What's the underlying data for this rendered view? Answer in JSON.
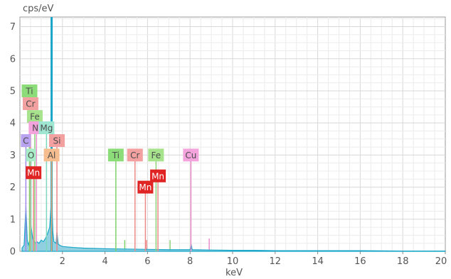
{
  "chart_data": {
    "type": "line",
    "title": "",
    "ylabel": "cps/eV",
    "xlabel": "keV",
    "xlim": [
      0,
      20
    ],
    "ylim": [
      0,
      7.3
    ],
    "x_ticks": [
      2,
      4,
      6,
      8,
      10,
      12,
      14,
      16,
      18,
      20
    ],
    "y_ticks": [
      0,
      1,
      2,
      3,
      4,
      5,
      6,
      7
    ],
    "grid": true,
    "series": [
      {
        "color": "#1aa6c9",
        "x": [
          0.1,
          0.2,
          0.28,
          0.35,
          0.4,
          0.45,
          0.52,
          0.6,
          0.7,
          0.8,
          0.9,
          1.0,
          1.1,
          1.2,
          1.3,
          1.4,
          1.46,
          1.49,
          1.52,
          1.55,
          1.6,
          1.7,
          1.74,
          1.8,
          1.9,
          2.0,
          2.5,
          3.0,
          4.0,
          5.0,
          6.0,
          7.0,
          8.0,
          8.05,
          8.1,
          9.0,
          10.0,
          11.0,
          12.0,
          14.0,
          16.0,
          18.0,
          20.0
        ],
        "y": [
          0.1,
          0.2,
          1.4,
          0.3,
          0.2,
          0.35,
          0.8,
          0.4,
          0.25,
          0.3,
          0.25,
          0.35,
          0.3,
          0.4,
          0.55,
          0.75,
          1.4,
          7.4,
          1.2,
          0.6,
          0.3,
          0.25,
          0.6,
          0.22,
          0.18,
          0.15,
          0.12,
          0.1,
          0.08,
          0.07,
          0.06,
          0.05,
          0.05,
          0.22,
          0.05,
          0.04,
          0.03,
          0.03,
          0.02,
          0.02,
          0.02,
          0.01,
          0.01
        ]
      }
    ],
    "element_markers": [
      {
        "symbol": "Ti",
        "x": 0.45,
        "y": 5.0,
        "color": "#8ddc7a",
        "line_color": "#7fd36a"
      },
      {
        "symbol": "Cr",
        "x": 0.5,
        "y": 4.6,
        "color": "#f3a0a0",
        "line_color": "#ee8a8a"
      },
      {
        "symbol": "Fe",
        "x": 0.7,
        "y": 4.2,
        "color": "#a6e38c",
        "line_color": "#8ed37a"
      },
      {
        "symbol": "Ni",
        "x": 0.78,
        "y": 3.85,
        "color": "#f4a4dc",
        "line_color": "#e992cf"
      },
      {
        "symbol": "Mg",
        "x": 1.25,
        "y": 3.85,
        "color": "#9fe6d2",
        "line_color": "#7fd8be"
      },
      {
        "symbol": "C",
        "x": 0.28,
        "y": 3.45,
        "color": "#b9a3f0",
        "line_color": "#a08ce6"
      },
      {
        "symbol": "Si",
        "x": 1.74,
        "y": 3.45,
        "color": "#f2a0a0",
        "line_color": "#ea8888"
      },
      {
        "symbol": "O",
        "x": 0.52,
        "y": 3.0,
        "color": "#a8ecc8",
        "line_color": "#7fd8a8"
      },
      {
        "symbol": "Al",
        "x": 1.49,
        "y": 3.0,
        "color": "#f6bd8e",
        "line_color": "#f0a870"
      },
      {
        "symbol": "Mn",
        "x": 0.64,
        "y": 2.45,
        "color": "#e02424",
        "line_color": "#ee8a8a"
      },
      {
        "symbol": "Ti",
        "x": 4.51,
        "y": 3.0,
        "color": "#8ddc7a",
        "line_color": "#7fd36a"
      },
      {
        "symbol": "Cr",
        "x": 5.41,
        "y": 3.0,
        "color": "#f3a0a0",
        "line_color": "#ee8a8a"
      },
      {
        "symbol": "Fe",
        "x": 6.4,
        "y": 3.0,
        "color": "#a6e38c",
        "line_color": "#8ed37a"
      },
      {
        "symbol": "Cu",
        "x": 8.04,
        "y": 3.0,
        "color": "#f4a4dc",
        "line_color": "#ea8ec9"
      },
      {
        "symbol": "Mn",
        "x": 5.9,
        "y": 2.0,
        "color": "#e02424",
        "line_color": "#ee8a8a"
      },
      {
        "symbol": "Mn",
        "x": 6.49,
        "y": 2.35,
        "color": "#e02424",
        "line_color": "#ee8a8a"
      }
    ],
    "minor_lines": [
      {
        "x": 4.93,
        "y": 0.35,
        "color": "#7fd36a"
      },
      {
        "x": 5.95,
        "y": 0.35,
        "color": "#ee8a8a"
      },
      {
        "x": 7.06,
        "y": 0.35,
        "color": "#8ed37a"
      },
      {
        "x": 8.9,
        "y": 0.4,
        "color": "#ea8ec9"
      }
    ]
  }
}
